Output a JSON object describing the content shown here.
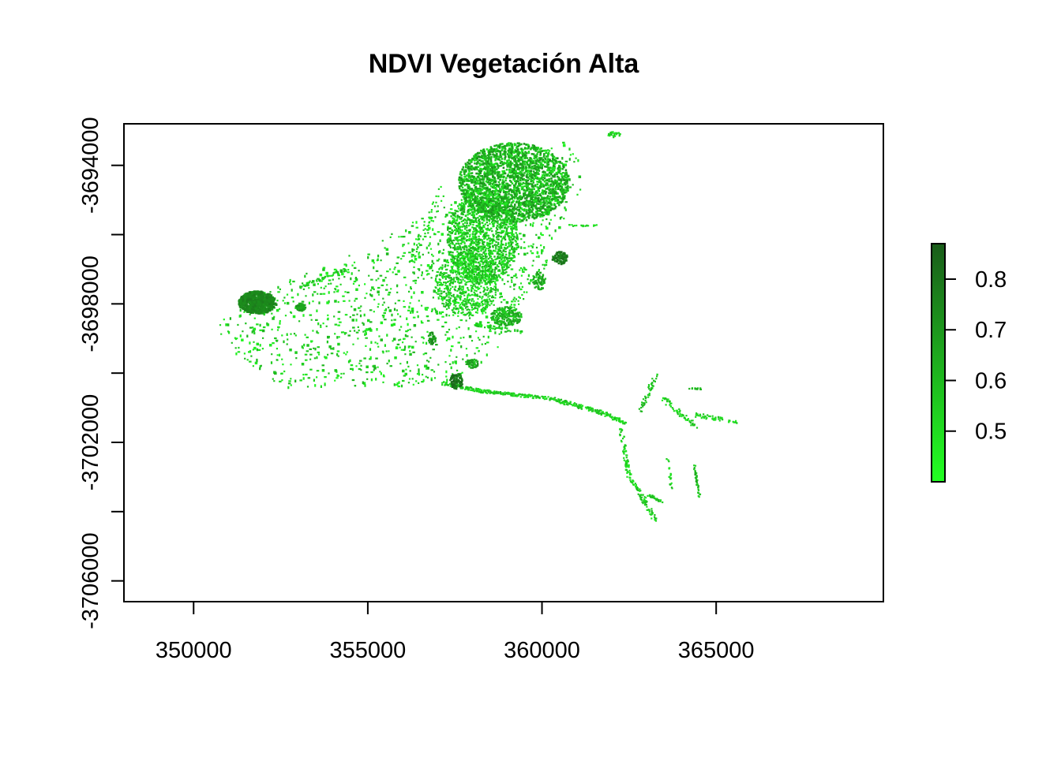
{
  "chart_data": {
    "type": "heatmap",
    "title": "NDVI Vegetación Alta",
    "xlabel": "",
    "ylabel": "",
    "xlim": [
      348000,
      369800
    ],
    "ylim": [
      -3706600,
      -3692800
    ],
    "x_ticks": [
      350000,
      355000,
      360000,
      365000
    ],
    "x_tick_labels": [
      "350000",
      "355000",
      "360000",
      "365000"
    ],
    "y_ticks": [
      -3694000,
      -3696000,
      -3698000,
      -3700000,
      -3702000,
      -3704000,
      -3706000
    ],
    "y_tick_labels": [
      "-3694000",
      "",
      "-3698000",
      "",
      "-3702000",
      "",
      "-3706000"
    ],
    "legend": {
      "position": "right",
      "range": [
        0.4,
        0.87
      ],
      "ticks": [
        0.5,
        0.6,
        0.7,
        0.8
      ],
      "tick_labels": [
        "0.5",
        "0.6",
        "0.7",
        "0.8"
      ],
      "colors": [
        "#22ff22",
        "#1a5c1a"
      ]
    },
    "grid": false
  }
}
